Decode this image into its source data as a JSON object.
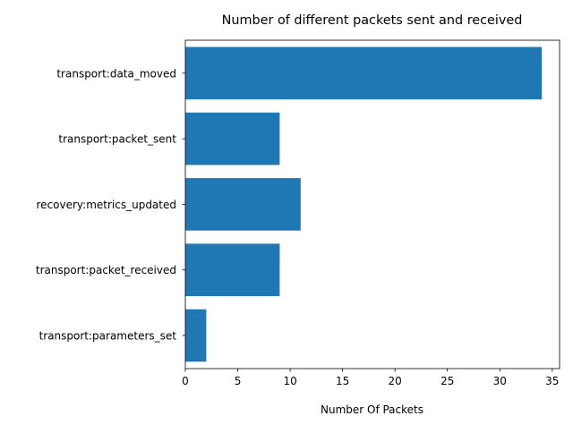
{
  "chart_data": {
    "type": "bar",
    "orientation": "horizontal",
    "title": "Number of different packets sent and received",
    "xlabel": "Number Of Packets",
    "ylabel": "",
    "categories": [
      "transport:parameters_set",
      "transport:packet_received",
      "recovery:metrics_updated",
      "transport:packet_sent",
      "transport:data_moved"
    ],
    "values": [
      2,
      9,
      11,
      9,
      34
    ],
    "xlim": [
      0,
      35.7
    ],
    "xticks": [
      0,
      5,
      10,
      15,
      20,
      25,
      30,
      35
    ],
    "grid": false,
    "bar_color": "#1f77b4"
  }
}
